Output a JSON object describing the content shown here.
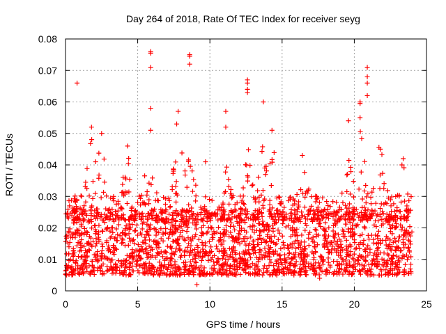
{
  "chart_data": {
    "type": "scatter",
    "title": "Day 264 of 2018, Rate Of TEC Index for receiver seyg",
    "xlabel": "GPS time / hours",
    "ylabel": "ROTI / TECUs",
    "xlim": [
      0,
      25
    ],
    "ylim": [
      0,
      0.08
    ],
    "x_ticks": [
      0,
      5,
      10,
      15,
      20,
      25
    ],
    "x_tick_labels": [
      "0",
      "5",
      "10",
      "15",
      "20",
      "25"
    ],
    "y_ticks": [
      0,
      0.01,
      0.02,
      0.03,
      0.04,
      0.05,
      0.06,
      0.07,
      0.08
    ],
    "y_tick_labels": [
      "0",
      "0.01",
      "0.02",
      "0.03",
      "0.04",
      "0.05",
      "0.06",
      "0.07",
      "0.08"
    ],
    "grid": true,
    "marker": "+",
    "color": "#ff0000",
    "series": [
      {
        "name": "ROTI",
        "data_extent": {
          "x": [
            0,
            24
          ],
          "y": [
            0.002,
            0.076
          ]
        },
        "typical_band": [
          0.005,
          0.025
        ],
        "notable_points": [
          {
            "x": 0.8,
            "y": 0.066
          },
          {
            "x": 5.9,
            "y": 0.076
          },
          {
            "x": 5.9,
            "y": 0.0755
          },
          {
            "x": 5.9,
            "y": 0.071
          },
          {
            "x": 5.9,
            "y": 0.058
          },
          {
            "x": 5.9,
            "y": 0.051
          },
          {
            "x": 8.6,
            "y": 0.075
          },
          {
            "x": 8.6,
            "y": 0.0745
          },
          {
            "x": 8.6,
            "y": 0.072
          },
          {
            "x": 7.8,
            "y": 0.057
          },
          {
            "x": 7.7,
            "y": 0.053
          },
          {
            "x": 11.1,
            "y": 0.057
          },
          {
            "x": 11.1,
            "y": 0.052
          },
          {
            "x": 12.6,
            "y": 0.067
          },
          {
            "x": 12.6,
            "y": 0.066
          },
          {
            "x": 12.6,
            "y": 0.064
          },
          {
            "x": 12.6,
            "y": 0.063
          },
          {
            "x": 13.7,
            "y": 0.06
          },
          {
            "x": 14.3,
            "y": 0.051
          },
          {
            "x": 20.4,
            "y": 0.06
          },
          {
            "x": 20.4,
            "y": 0.0595
          },
          {
            "x": 20.4,
            "y": 0.055
          },
          {
            "x": 20.9,
            "y": 0.071
          },
          {
            "x": 20.9,
            "y": 0.068
          },
          {
            "x": 20.9,
            "y": 0.066
          },
          {
            "x": 20.9,
            "y": 0.062
          },
          {
            "x": 19.6,
            "y": 0.054
          },
          {
            "x": 1.8,
            "y": 0.052
          },
          {
            "x": 2.5,
            "y": 0.05
          },
          {
            "x": 9.7,
            "y": 0.041
          },
          {
            "x": 21.8,
            "y": 0.045
          },
          {
            "x": 23.3,
            "y": 0.04
          },
          {
            "x": 4.3,
            "y": 0.046
          },
          {
            "x": 16.4,
            "y": 0.043
          },
          {
            "x": 9.1,
            "y": 0.002
          },
          {
            "x": 17.6,
            "y": 0.004
          }
        ]
      }
    ]
  }
}
